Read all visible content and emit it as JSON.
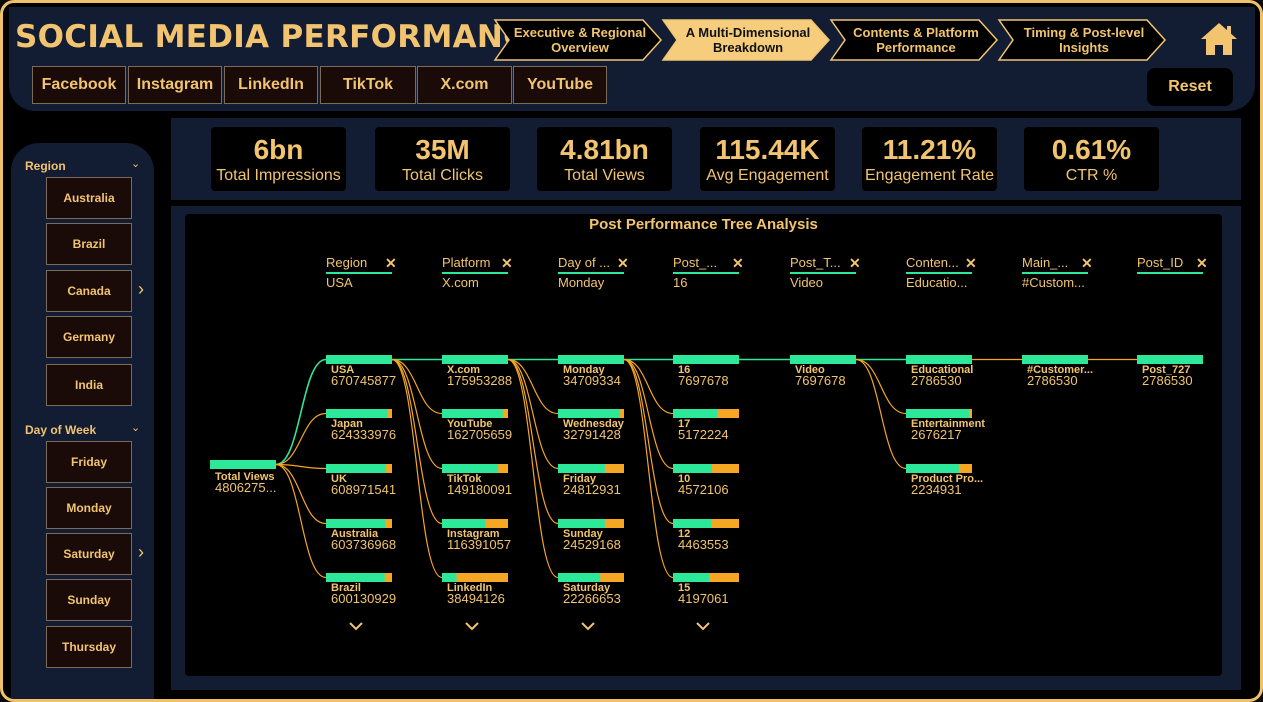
{
  "header": {
    "title": "SOCIAL MEDIA PERFORMANCE",
    "nav_tabs": [
      {
        "label": "Executive & Regional Overview",
        "active": false
      },
      {
        "label": "A Multi-Dimensional Breakdown",
        "active": true
      },
      {
        "label": "Contents & Platform Performance",
        "active": false
      },
      {
        "label": "Timing & Post-level Insights",
        "active": false
      }
    ],
    "home_icon": "home-icon",
    "platforms": [
      "Facebook",
      "Instagram",
      "LinkedIn",
      "TikTok",
      "X.com",
      "YouTube"
    ],
    "reset_label": "Reset"
  },
  "sidebar": {
    "region": {
      "title": "Region",
      "items": [
        "Australia",
        "Brazil",
        "Canada",
        "Germany",
        "India"
      ],
      "arrow_on": "Canada"
    },
    "day_of_week": {
      "title": "Day of Week",
      "items": [
        "Friday",
        "Monday",
        "Saturday",
        "Sunday",
        "Thursday"
      ],
      "arrow_on": "Saturday"
    }
  },
  "kpis": [
    {
      "value": "6bn",
      "label": "Total Impressions"
    },
    {
      "value": "35M",
      "label": "Total Clicks"
    },
    {
      "value": "4.81bn",
      "label": "Total Views"
    },
    {
      "value": "115.44K",
      "label": "Avg Engagement"
    },
    {
      "value": "11.21%",
      "label": "Engagement Rate"
    },
    {
      "value": "0.61%",
      "label": "CTR %"
    }
  ],
  "tree": {
    "title": "Post Performance Tree Analysis",
    "colors": {
      "fill": "#2ee89a",
      "remainder": "#f5a623",
      "active_link": "#2ee89a",
      "link": "#f5a623",
      "text": "#f2c46f"
    },
    "root": {
      "label": "Total Views",
      "value": "4806275..."
    },
    "levels": [
      {
        "name": "Region",
        "selected": "USA",
        "nodes": [
          {
            "label": "USA",
            "value": "670745877",
            "fill": 1.0
          },
          {
            "label": "Japan",
            "value": "624333976",
            "fill": 0.93
          },
          {
            "label": "UK",
            "value": "608971541",
            "fill": 0.91
          },
          {
            "label": "Australia",
            "value": "603736968",
            "fill": 0.9
          },
          {
            "label": "Brazil",
            "value": "600130929",
            "fill": 0.89
          }
        ],
        "more": true
      },
      {
        "name": "Platform",
        "selected": "X.com",
        "nodes": [
          {
            "label": "X.com",
            "value": "175953288",
            "fill": 1.0
          },
          {
            "label": "YouTube",
            "value": "162705659",
            "fill": 0.92
          },
          {
            "label": "TikTok",
            "value": "149180091",
            "fill": 0.85
          },
          {
            "label": "Instagram",
            "value": "116391057",
            "fill": 0.66
          },
          {
            "label": "LinkedIn",
            "value": "38494126",
            "fill": 0.22
          }
        ],
        "more": true
      },
      {
        "name": "Day of ...",
        "selected": "Monday",
        "nodes": [
          {
            "label": "Monday",
            "value": "34709334",
            "fill": 1.0
          },
          {
            "label": "Wednesday",
            "value": "32791428",
            "fill": 0.94
          },
          {
            "label": "Friday",
            "value": "24812931",
            "fill": 0.71
          },
          {
            "label": "Sunday",
            "value": "24529168",
            "fill": 0.71
          },
          {
            "label": "Saturday",
            "value": "22266653",
            "fill": 0.64
          }
        ],
        "more": true
      },
      {
        "name": "Post_...",
        "selected": "16",
        "nodes": [
          {
            "label": "16",
            "value": "7697678",
            "fill": 1.0
          },
          {
            "label": "17",
            "value": "5172224",
            "fill": 0.67
          },
          {
            "label": "10",
            "value": "4572106",
            "fill": 0.59
          },
          {
            "label": "12",
            "value": "4463553",
            "fill": 0.58
          },
          {
            "label": "15",
            "value": "4197061",
            "fill": 0.55
          }
        ],
        "more": true
      },
      {
        "name": "Post_T...",
        "selected": "Video",
        "nodes": [
          {
            "label": "Video",
            "value": "7697678",
            "fill": 1.0
          }
        ],
        "more": false
      },
      {
        "name": "Conten...",
        "selected": "Educatio...",
        "nodes": [
          {
            "label": "Educational",
            "value": "2786530",
            "fill": 1.0
          },
          {
            "label": "Entertainment",
            "value": "2676217",
            "fill": 0.96
          },
          {
            "label": "Product Pro...",
            "value": "2234931",
            "fill": 0.8
          }
        ],
        "more": false
      },
      {
        "name": "Main_...",
        "selected": "#Custom...",
        "nodes": [
          {
            "label": "#Customer...",
            "value": "2786530",
            "fill": 1.0
          }
        ],
        "more": false
      },
      {
        "name": "Post_ID",
        "selected": "",
        "nodes": [
          {
            "label": "Post_727",
            "value": "2786530",
            "fill": 1.0
          }
        ],
        "more": false
      }
    ]
  }
}
